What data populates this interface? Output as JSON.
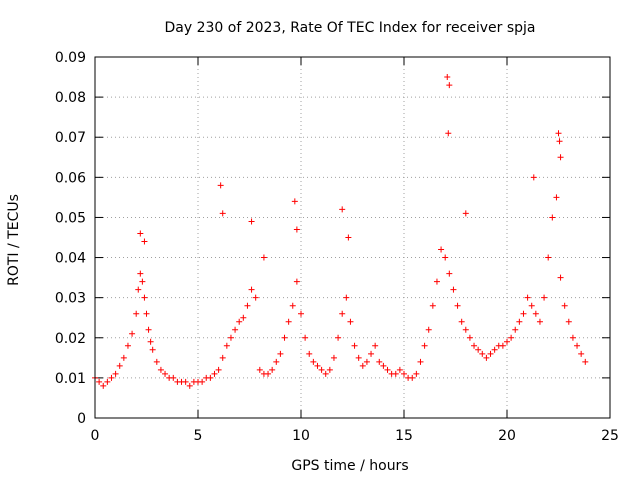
{
  "chart_data": {
    "type": "scatter",
    "title": "Day 230 of 2023, Rate Of TEC Index for receiver spja",
    "xlabel": "GPS time / hours",
    "ylabel": "ROTI / TECUs",
    "xlim": [
      0,
      25
    ],
    "ylim": [
      0,
      0.09
    ],
    "x_ticks": [
      "0",
      "5",
      "10",
      "15",
      "20",
      "25"
    ],
    "y_ticks": [
      "0",
      "0.01",
      "0.02",
      "0.03",
      "0.04",
      "0.05",
      "0.06",
      "0.07",
      "0.08",
      "0.09"
    ],
    "grid": true,
    "legend": "none",
    "marker": "+",
    "color": "#ff0000",
    "series": [
      {
        "x": [
          0.0,
          0.2,
          0.4,
          0.6,
          0.8,
          1.0,
          1.2,
          1.4,
          1.6,
          1.8,
          2.0,
          2.1,
          2.2,
          2.3,
          2.4,
          2.5,
          2.6,
          2.7,
          2.8,
          3.0,
          3.2,
          3.4,
          3.6,
          3.8,
          4.0,
          4.2,
          4.4,
          4.6,
          4.8,
          5.0,
          5.2,
          5.4,
          5.6,
          5.8,
          6.0,
          6.2,
          6.4,
          6.6,
          6.8,
          7.0,
          7.2,
          7.4,
          7.6,
          7.8,
          8.0,
          8.2,
          8.4,
          8.6,
          8.8,
          9.0,
          9.2,
          9.4,
          9.6,
          9.8,
          10.0,
          10.2,
          10.4,
          10.6,
          10.8,
          11.0,
          11.2,
          11.4,
          11.6,
          11.8,
          12.0,
          12.2,
          12.4,
          12.6,
          12.8,
          13.0,
          13.2,
          13.4,
          13.6,
          13.8,
          14.0,
          14.2,
          14.4,
          14.6,
          14.8,
          15.0,
          15.2,
          15.4,
          15.6,
          15.8,
          16.0,
          16.2,
          16.4,
          16.6,
          16.8,
          17.0,
          17.2,
          17.4,
          17.6,
          17.8,
          18.0,
          18.2,
          18.4,
          18.6,
          18.8,
          19.0,
          19.2,
          19.4,
          19.6,
          19.8,
          20.0,
          20.2,
          20.4,
          20.6,
          20.8,
          21.0,
          21.2,
          21.4,
          21.6,
          21.8,
          22.0,
          22.2,
          22.4,
          22.6,
          22.8,
          23.0,
          23.2,
          23.4,
          23.6,
          23.8
        ],
        "y": [
          0.01,
          0.009,
          0.008,
          0.009,
          0.01,
          0.011,
          0.013,
          0.015,
          0.018,
          0.021,
          0.026,
          0.032,
          0.036,
          0.034,
          0.03,
          0.026,
          0.022,
          0.019,
          0.017,
          0.014,
          0.012,
          0.011,
          0.01,
          0.01,
          0.009,
          0.009,
          0.009,
          0.008,
          0.009,
          0.009,
          0.009,
          0.01,
          0.01,
          0.011,
          0.012,
          0.015,
          0.018,
          0.02,
          0.022,
          0.024,
          0.025,
          0.028,
          0.032,
          0.03,
          0.012,
          0.011,
          0.011,
          0.012,
          0.014,
          0.016,
          0.02,
          0.024,
          0.028,
          0.034,
          0.026,
          0.02,
          0.016,
          0.014,
          0.013,
          0.012,
          0.011,
          0.012,
          0.015,
          0.02,
          0.026,
          0.03,
          0.024,
          0.018,
          0.015,
          0.013,
          0.014,
          0.016,
          0.018,
          0.014,
          0.013,
          0.012,
          0.011,
          0.011,
          0.012,
          0.011,
          0.01,
          0.01,
          0.011,
          0.014,
          0.018,
          0.022,
          0.028,
          0.034,
          0.042,
          0.04,
          0.036,
          0.032,
          0.028,
          0.024,
          0.022,
          0.02,
          0.018,
          0.017,
          0.016,
          0.015,
          0.016,
          0.017,
          0.018,
          0.018,
          0.019,
          0.02,
          0.022,
          0.024,
          0.026,
          0.03,
          0.028,
          0.026,
          0.024,
          0.03,
          0.04,
          0.05,
          0.055,
          0.035,
          0.028,
          0.024,
          0.02,
          0.018,
          0.016,
          0.014
        ]
      },
      {
        "x": [
          2.2,
          2.4,
          6.1,
          6.2,
          7.6,
          9.7,
          9.8,
          12.3,
          17.1,
          17.2,
          17.15,
          22.5,
          22.6,
          22.55,
          21.3,
          18.0,
          12.0,
          8.2
        ],
        "y": [
          0.046,
          0.044,
          0.058,
          0.051,
          0.049,
          0.054,
          0.047,
          0.045,
          0.085,
          0.083,
          0.071,
          0.071,
          0.065,
          0.069,
          0.06,
          0.051,
          0.052,
          0.04
        ]
      }
    ]
  }
}
